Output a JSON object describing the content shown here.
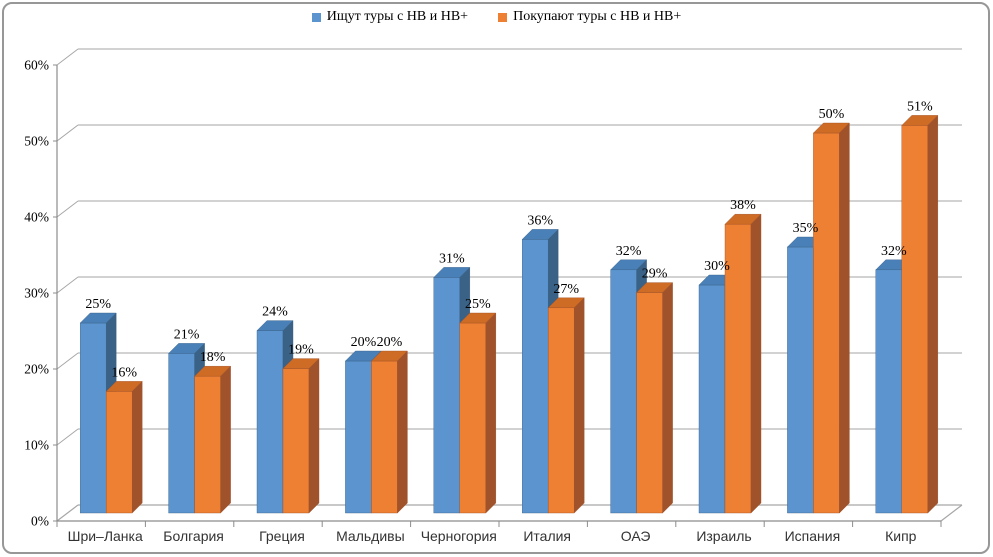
{
  "chart_data": {
    "type": "bar",
    "effect": "3d-clustered",
    "title": "",
    "categories": [
      "Шри–Ланка",
      "Болгария",
      "Греция",
      "Мальдивы",
      "Черногория",
      "Италия",
      "ОАЭ",
      "Израиль",
      "Испания",
      "Кипр"
    ],
    "series": [
      {
        "name": "Ищут туры с HB и HB+",
        "color": "#5B94CF",
        "color_top": "#4A80B8",
        "color_side": "#3A6186",
        "values": [
          25,
          21,
          24,
          20,
          31,
          36,
          32,
          30,
          35,
          32
        ]
      },
      {
        "name": "Покупают туры с HB и HB+",
        "color": "#EE8033",
        "color_top": "#CE6B24",
        "color_side": "#A0522A",
        "values": [
          16,
          18,
          19,
          20,
          25,
          27,
          29,
          38,
          50,
          51
        ]
      }
    ],
    "data_labels": [
      "25%",
      "21%",
      "24%",
      "20%",
      "31%",
      "36%",
      "32%",
      "30%",
      "35%",
      "32%",
      "16%",
      "18%",
      "19%",
      "20%",
      "25%",
      "27%",
      "29%",
      "38%",
      "50%",
      "51%"
    ],
    "xlabel": "",
    "ylabel": "",
    "ylim": [
      0,
      60
    ],
    "ytick_step": 10,
    "yticks_labels": [
      "0%",
      "10%",
      "20%",
      "30%",
      "40%",
      "50%",
      "60%"
    ],
    "grid": true,
    "legend_position": "top",
    "grid_color": "#A6A6A6",
    "axis_color": "#8C8C8C",
    "value_label_color": "#000000",
    "category_label_color": "#333333",
    "border_color": "#979797",
    "background": "#FFFFFF"
  }
}
